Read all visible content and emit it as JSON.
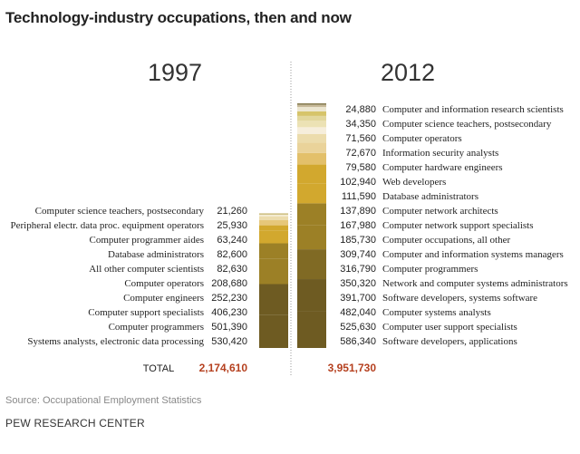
{
  "title": "Technology-industry occupations, then and now",
  "source": "Source: Occupational Employment Statistics",
  "organization": "PEW RESEARCH CENTER",
  "chart_data": {
    "type": "bar",
    "stacked": true,
    "total_label": "TOTAL",
    "columns": [
      {
        "year": "1997",
        "total": "2,174,610",
        "segments": [
          {
            "label": "Systems analysts, electronic data processing",
            "value": 530420,
            "display": "530,420",
            "color": "#6e5b22"
          },
          {
            "label": "Computer programmers",
            "value": 501390,
            "display": "501,390",
            "color": "#6e5b22"
          },
          {
            "label": "Computer support specialists",
            "value": 406230,
            "display": "406,230",
            "color": "#9c8026"
          },
          {
            "label": "Computer engineers",
            "value": 252230,
            "display": "252,230",
            "color": "#9c8026"
          },
          {
            "label": "Computer operators",
            "value": 208680,
            "display": "208,680",
            "color": "#d2a82e"
          },
          {
            "label": "All other computer scientists",
            "value": 82630,
            "display": "82,630",
            "color": "#d2a82e"
          },
          {
            "label": "Database administrators",
            "value": 82600,
            "display": "82,600",
            "color": "#e6c77a"
          },
          {
            "label": "Computer programmer aides",
            "value": 63240,
            "display": "63,240",
            "color": "#ecdcac"
          },
          {
            "label": "Peripheral electr. data proc. equipment operators",
            "value": 25930,
            "display": "25,930",
            "color": "#f4ecd2"
          },
          {
            "label": "Computer science teachers, postsecondary",
            "value": 21260,
            "display": "21,260",
            "color": "#c9b978"
          }
        ]
      },
      {
        "year": "2012",
        "total": "3,951,730",
        "segments": [
          {
            "label": "Software developers, applications",
            "value": 586340,
            "display": "586,340",
            "color": "#6e5b22"
          },
          {
            "label": "Computer user support specialists",
            "value": 525630,
            "display": "525,630",
            "color": "#6e5b22"
          },
          {
            "label": "Computer systems analysts",
            "value": 482040,
            "display": "482,040",
            "color": "#806a24"
          },
          {
            "label": "Software developers, systems software",
            "value": 391700,
            "display": "391,700",
            "color": "#9c8026"
          },
          {
            "label": "Network and computer systems administrators",
            "value": 350320,
            "display": "350,320",
            "color": "#9c8026"
          },
          {
            "label": "Computer programmers",
            "value": 316790,
            "display": "316,790",
            "color": "#d2a82e"
          },
          {
            "label": "Computer and information systems managers",
            "value": 309740,
            "display": "309,740",
            "color": "#d2a82e"
          },
          {
            "label": "Computer occupations, all other",
            "value": 185730,
            "display": "185,730",
            "color": "#e3c06a"
          },
          {
            "label": "Computer network support specialists",
            "value": 167980,
            "display": "167,980",
            "color": "#ead39a"
          },
          {
            "label": "Computer network architects",
            "value": 137890,
            "display": "137,890",
            "color": "#ecdcac"
          },
          {
            "label": "Database administrators",
            "value": 111590,
            "display": "111,590",
            "color": "#f6eedb"
          },
          {
            "label": "Web developers",
            "value": 102940,
            "display": "102,940",
            "color": "#ece2b4"
          },
          {
            "label": "Computer hardware engineers",
            "value": 79580,
            "display": "79,580",
            "color": "#e2d79c"
          },
          {
            "label": "Information security analysts",
            "value": 72670,
            "display": "72,670",
            "color": "#d6c46a"
          },
          {
            "label": "Computer operators",
            "value": 71560,
            "display": "71,560",
            "color": "#ece6d0"
          },
          {
            "label": "Computer science teachers, postsecondary",
            "value": 34350,
            "display": "34,350",
            "color": "#c7b998"
          },
          {
            "label": "Computer and information research scientists",
            "value": 24880,
            "display": "24,880",
            "color": "#8a7e54"
          }
        ]
      }
    ],
    "colors": {
      "total_value": "#b5401f",
      "divider": "#999999"
    }
  }
}
